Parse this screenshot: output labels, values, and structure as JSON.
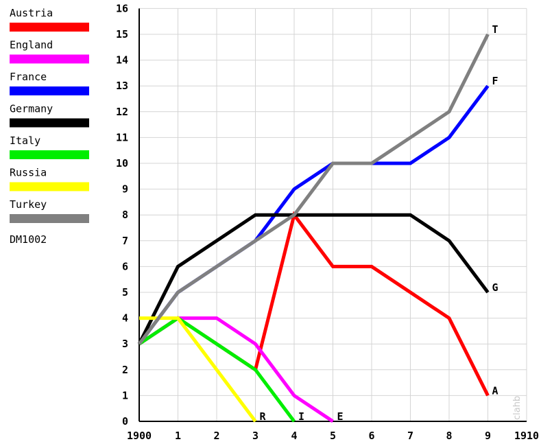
{
  "chart_data": {
    "type": "line",
    "x": [
      0,
      1,
      2,
      3,
      4,
      5,
      6,
      7,
      8,
      9
    ],
    "x_tick_labels": [
      "1900",
      "1",
      "2",
      "3",
      "4",
      "5",
      "6",
      "7",
      "8",
      "9",
      "1910"
    ],
    "y_ticks": [
      0,
      1,
      2,
      3,
      4,
      5,
      6,
      7,
      8,
      9,
      10,
      11,
      12,
      13,
      14,
      15,
      16
    ],
    "xlim": [
      0,
      10
    ],
    "ylim": [
      0,
      16
    ],
    "grid": true,
    "legend_position": "left",
    "legend_caption": "DM1002",
    "watermark": "clahb",
    "series": [
      {
        "name": "Austria",
        "color": "#ff0000",
        "x": [
          0,
          1,
          2,
          3,
          4,
          5,
          6,
          7,
          8,
          9
        ],
        "values": [
          3,
          4,
          3,
          2,
          8,
          6,
          6,
          5,
          4,
          1
        ],
        "end_label": "A"
      },
      {
        "name": "England",
        "color": "#ff00ff",
        "x": [
          0,
          1,
          2,
          3,
          4,
          5
        ],
        "values": [
          3,
          4,
          4,
          3,
          1,
          0
        ],
        "end_label": "E"
      },
      {
        "name": "France",
        "color": "#0000ff",
        "x": [
          0,
          1,
          2,
          3,
          4,
          5,
          6,
          7,
          8,
          9
        ],
        "values": [
          3,
          5,
          6,
          7,
          9,
          10,
          10,
          10,
          11,
          13
        ],
        "end_label": "F"
      },
      {
        "name": "Germany",
        "color": "#000000",
        "x": [
          0,
          1,
          2,
          3,
          4,
          5,
          6,
          7,
          8,
          9
        ],
        "values": [
          3,
          6,
          7,
          8,
          8,
          8,
          8,
          8,
          7,
          5
        ],
        "end_label": "G"
      },
      {
        "name": "Italy",
        "color": "#00ee00",
        "x": [
          0,
          1,
          2,
          3,
          4
        ],
        "values": [
          3,
          4,
          3,
          2,
          0
        ],
        "end_label": "I"
      },
      {
        "name": "Russia",
        "color": "#ffff00",
        "x": [
          0,
          1,
          2,
          3
        ],
        "values": [
          4,
          4,
          2,
          0
        ],
        "end_label": "R"
      },
      {
        "name": "Turkey",
        "color": "#808080",
        "x": [
          0,
          1,
          2,
          3,
          4,
          5,
          6,
          7,
          8,
          9
        ],
        "values": [
          3,
          5,
          6,
          7,
          8,
          10,
          10,
          11,
          12,
          15
        ],
        "end_label": "T"
      }
    ]
  }
}
